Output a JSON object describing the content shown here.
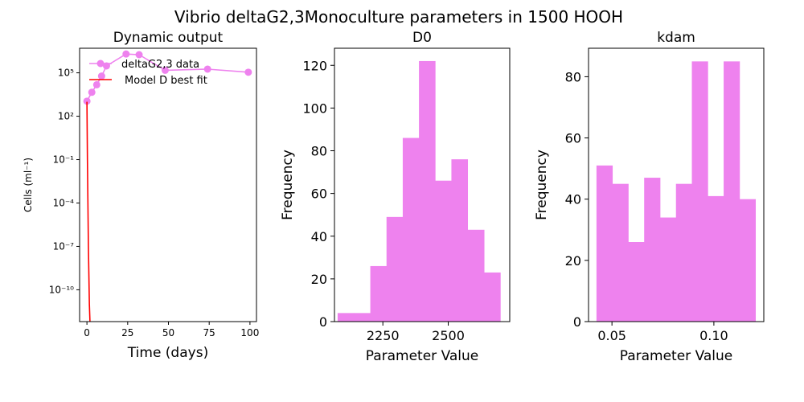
{
  "figure": {
    "suptitle": "Vibrio deltaG2,3Monoculture parameters in 1500 HOOH"
  },
  "colors": {
    "bars": "#ee82ee",
    "data_line": "#ee82ee",
    "model_line": "#ff0000",
    "axes": "#000000"
  },
  "chart_data": [
    {
      "type": "line",
      "title": "Dynamic output",
      "xlabel": "Time (days)",
      "ylabel": "Cells (ml⁻¹)",
      "yscale": "log",
      "xlim": [
        -4.5,
        104
      ],
      "ylim_log10": [
        -12.2,
        6.7
      ],
      "xticks": [
        0,
        25,
        50,
        75,
        100
      ],
      "yticks_log10": [
        -10,
        -7,
        -4,
        -1,
        2,
        5
      ],
      "ytick_labels": [
        "10⁻¹⁰",
        "10⁻⁷",
        "10⁻⁴",
        "10⁻¹",
        "10²",
        "10⁵"
      ],
      "legend": {
        "placement": "top-left",
        "entries": [
          "deltaG2,3 data",
          "Model D best fit"
        ]
      },
      "series": [
        {
          "name": "deltaG2,3 data",
          "style": "line-markers",
          "x": [
            0,
            3,
            6,
            9,
            12,
            24,
            32,
            48,
            74,
            99
          ],
          "y": [
            1100,
            4500,
            15000,
            60000,
            300000,
            2000000,
            1800000,
            150000,
            180000,
            110000
          ]
        },
        {
          "name": "Model D best fit",
          "style": "line",
          "x": [
            0,
            0.3,
            0.6,
            0.9,
            1.2,
            1.5,
            1.8,
            2.1
          ],
          "y": [
            1000,
            0.1,
            0.0001,
            1e-07,
            1e-09,
            1e-11,
            1e-12,
            1e-13
          ]
        }
      ],
      "grid": false
    },
    {
      "type": "bar",
      "title": "D0",
      "xlabel": "Parameter Value",
      "ylabel": "Frequency",
      "xlim": [
        2065,
        2735
      ],
      "ylim": [
        0,
        128
      ],
      "xticks": [
        2250,
        2500
      ],
      "yticks": [
        0,
        20,
        40,
        60,
        80,
        100,
        120
      ],
      "bin_edges": [
        2077,
        2139,
        2202,
        2264,
        2326,
        2388,
        2450,
        2512,
        2574,
        2637,
        2699
      ],
      "values": [
        4,
        4,
        26,
        49,
        86,
        122,
        66,
        76,
        43,
        23
      ],
      "grid": false
    },
    {
      "type": "bar",
      "title": "kdam",
      "xlabel": "Parameter Value",
      "ylabel": "Frequency",
      "xlim": [
        0.0385,
        0.1245
      ],
      "ylim": [
        0,
        89.3
      ],
      "xticks": [
        0.05,
        0.1
      ],
      "xtick_labels": [
        "0.05",
        "0.10"
      ],
      "yticks": [
        0,
        20,
        40,
        60,
        80
      ],
      "bin_edges": [
        0.0424,
        0.0502,
        0.058,
        0.0658,
        0.0736,
        0.0814,
        0.0892,
        0.097,
        0.1048,
        0.1126,
        0.1204
      ],
      "values": [
        51,
        45,
        26,
        47,
        34,
        45,
        85,
        41,
        85,
        40
      ],
      "grid": false
    }
  ]
}
